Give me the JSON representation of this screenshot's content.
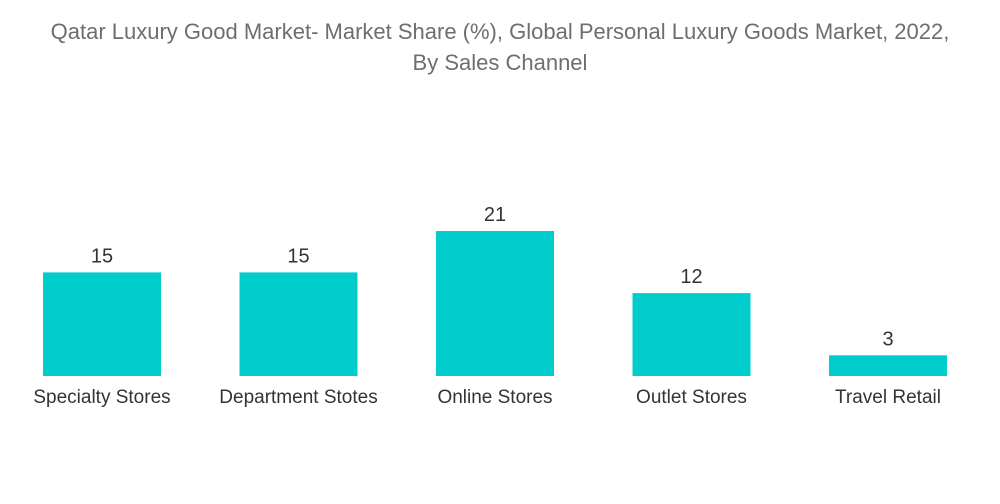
{
  "chart_data": {
    "type": "bar",
    "title_lines": [
      "Qatar Luxury Good Market- Market Share (%), Global Personal Luxury Goods Market, 2022,",
      "By Sales Channel"
    ],
    "categories": [
      "Specialty Stores",
      "Department Stotes",
      "Online Stores",
      "Outlet Stores",
      "Travel Retail"
    ],
    "values": [
      15,
      15,
      21,
      12,
      3
    ],
    "value_labels": [
      "15",
      "15",
      "21",
      "12",
      "3"
    ],
    "xlabel": "",
    "ylabel": "",
    "ylim": [
      0,
      21
    ],
    "grid": false,
    "legend": "none",
    "colors": {
      "bar": "#00cccc",
      "label_text": "#333333",
      "title_text": "#6e6e6e"
    }
  }
}
